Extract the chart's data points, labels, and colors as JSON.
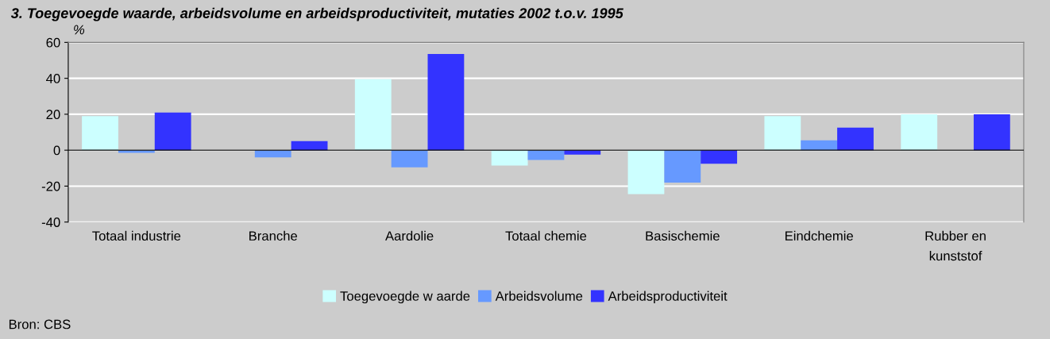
{
  "chart_data": {
    "type": "bar",
    "title": "3. Toegevoegde waarde, arbeidsvolume en arbeidsproductiviteit, mutaties 2002 t.o.v. 1995",
    "ylabel": "%",
    "categories": [
      "Totaal industrie",
      "Branche",
      "Aardolie",
      "Totaal chemie",
      "Basischemie",
      "Eindchemie",
      "Rubber en\nkunststof"
    ],
    "series": [
      {
        "name": "Toegevoegde w aarde",
        "color": "#ccffff",
        "values": [
          19,
          0,
          39.5,
          -8.5,
          -24.5,
          19,
          20
        ]
      },
      {
        "name": "Arbeidsvolume",
        "color": "#6699ff",
        "values": [
          -1.5,
          -4,
          -9.5,
          -5.5,
          -18,
          5.5,
          0
        ]
      },
      {
        "name": "Arbeidsproductiviteit",
        "color": "#3333ff",
        "values": [
          21,
          5,
          53.5,
          -2.5,
          -7.5,
          12.5,
          20
        ]
      }
    ],
    "ylim": [
      -40,
      60
    ],
    "yticks": [
      -40,
      -20,
      0,
      20,
      40,
      60
    ],
    "grid": "y",
    "legend": "bottom",
    "annotations": [
      "Bron: CBS"
    ]
  }
}
